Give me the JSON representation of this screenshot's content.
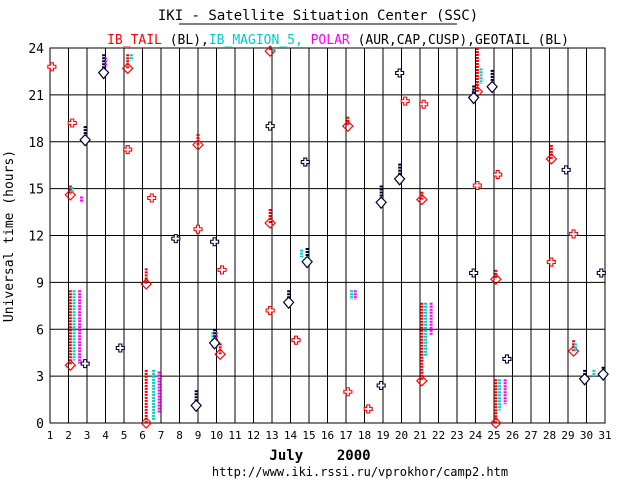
{
  "chart_data": {
    "type": "scatter",
    "title": "IKI - Satellite Situation Center (SSC)",
    "subtitle_parts": [
      {
        "text": "IB_TAIL",
        "color": "#ff0000"
      },
      {
        "text": " (BL),",
        "color": "#000000"
      },
      {
        "text": "IB_MAGION_5,",
        "color": "#00cccc"
      },
      {
        "text": " POLAR",
        "color": "#ff00ff"
      },
      {
        "text": " (AUR,CAP,CUSP),GEOTAIL (BL)",
        "color": "#000000"
      }
    ],
    "ylabel": "Universal time (hours)",
    "xlabel": "July    2000",
    "url": "http://www.iki.rssi.ru/vprokhor/camp2.htm",
    "xlim": [
      1,
      31
    ],
    "ylim": [
      0,
      24
    ],
    "x_ticks": [
      "1",
      "2",
      "3",
      "4",
      "5",
      "6",
      "7",
      "8",
      "9",
      "10",
      "11",
      "12",
      "13",
      "14",
      "15",
      "16",
      "17",
      "18",
      "19",
      "20",
      "21",
      "22",
      "23",
      "24",
      "25",
      "26",
      "27",
      "28",
      "29",
      "30",
      "31"
    ],
    "y_ticks": [
      "0",
      "3",
      "6",
      "9",
      "12",
      "15",
      "18",
      "21",
      "24"
    ],
    "grid": true,
    "colors": {
      "ib_tail": "#ff0000",
      "magion": "#00cccc",
      "polar": "#ff00ff",
      "geotail": "#000033"
    },
    "series": [
      {
        "name": "IB_TAIL",
        "color": "#ff0000",
        "entries": [
          {
            "x": 1.1,
            "y": 22.8
          },
          {
            "x": 2.2,
            "y": 19.2
          },
          {
            "x": 5.2,
            "y": 17.5
          },
          {
            "x": 6.5,
            "y": 14.4
          },
          {
            "x": 9.0,
            "y": 12.4
          },
          {
            "x": 10.3,
            "y": 9.8
          },
          {
            "x": 12.9,
            "y": 7.2
          },
          {
            "x": 14.3,
            "y": 5.3
          },
          {
            "x": 17.1,
            "y": 2.0
          },
          {
            "x": 18.2,
            "y": 0.9
          },
          {
            "x": 20.2,
            "y": 20.6
          },
          {
            "x": 21.2,
            "y": 20.4
          },
          {
            "x": 24.1,
            "y": 15.2
          },
          {
            "x": 25.2,
            "y": 15.9
          },
          {
            "x": 28.1,
            "y": 10.3
          },
          {
            "x": 29.3,
            "y": 12.1
          }
        ],
        "intervals": [
          {
            "x": 2.1,
            "y_start": 3.7,
            "y_end": 8.5
          },
          {
            "x": 2.1,
            "y_start": 14.6,
            "y_end": 15.2
          },
          {
            "x": 5.2,
            "y_start": 22.7,
            "y_end": 23.6
          },
          {
            "x": 6.2,
            "y_start": 0.0,
            "y_end": 3.4
          },
          {
            "x": 6.2,
            "y_start": 8.9,
            "y_end": 9.9
          },
          {
            "x": 9.0,
            "y_start": 17.8,
            "y_end": 18.5
          },
          {
            "x": 10.2,
            "y_start": 4.4,
            "y_end": 5.1
          },
          {
            "x": 12.9,
            "y_start": 12.8,
            "y_end": 13.7
          },
          {
            "x": 12.9,
            "y_start": 23.8,
            "y_end": 24.0
          },
          {
            "x": 17.1,
            "y_start": 19.0,
            "y_end": 19.6
          },
          {
            "x": 21.1,
            "y_start": 2.7,
            "y_end": 7.7
          },
          {
            "x": 21.1,
            "y_start": 14.3,
            "y_end": 14.8
          },
          {
            "x": 24.1,
            "y_start": 21.2,
            "y_end": 24.0
          },
          {
            "x": 25.1,
            "y_start": 0.0,
            "y_end": 2.8
          },
          {
            "x": 25.1,
            "y_start": 9.2,
            "y_end": 9.8
          },
          {
            "x": 28.1,
            "y_start": 16.9,
            "y_end": 17.8
          },
          {
            "x": 29.3,
            "y_start": 4.6,
            "y_end": 5.3
          }
        ]
      },
      {
        "name": "IB_MAGION_5",
        "color": "#00cccc",
        "intervals": [
          {
            "x": 2.3,
            "y_start": 4.0,
            "y_end": 8.5
          },
          {
            "x": 2.2,
            "y_start": 14.7,
            "y_end": 15.1
          },
          {
            "x": 5.4,
            "y_start": 23.2,
            "y_end": 23.6
          },
          {
            "x": 6.6,
            "y_start": 0.2,
            "y_end": 3.4
          },
          {
            "x": 9.8,
            "y_start": 4.8,
            "y_end": 5.8
          },
          {
            "x": 13.1,
            "y_start": 23.7,
            "y_end": 24.0
          },
          {
            "x": 14.6,
            "y_start": 10.6,
            "y_end": 11.1
          },
          {
            "x": 17.3,
            "y_start": 7.9,
            "y_end": 8.5
          },
          {
            "x": 21.3,
            "y_start": 4.3,
            "y_end": 7.7
          },
          {
            "x": 24.3,
            "y_start": 21.7,
            "y_end": 22.7
          },
          {
            "x": 25.3,
            "y_start": 0.8,
            "y_end": 2.8
          },
          {
            "x": 29.4,
            "y_start": 4.6,
            "y_end": 5.1
          },
          {
            "x": 30.4,
            "y_start": 3.0,
            "y_end": 3.4
          }
        ]
      },
      {
        "name": "POLAR",
        "color": "#ff00ff",
        "intervals": [
          {
            "x": 2.6,
            "y_start": 3.8,
            "y_end": 8.5
          },
          {
            "x": 2.7,
            "y_start": 14.1,
            "y_end": 14.5
          },
          {
            "x": 4.0,
            "y_start": 22.8,
            "y_end": 23.4
          },
          {
            "x": 6.9,
            "y_start": 0.6,
            "y_end": 3.3
          },
          {
            "x": 10.0,
            "y_start": 4.8,
            "y_end": 5.8
          },
          {
            "x": 17.5,
            "y_start": 7.9,
            "y_end": 8.5
          },
          {
            "x": 21.6,
            "y_start": 5.6,
            "y_end": 7.7
          },
          {
            "x": 25.6,
            "y_start": 1.2,
            "y_end": 2.8
          }
        ]
      },
      {
        "name": "GEOTAIL",
        "color": "#000033",
        "entries": [
          {
            "x": 2.9,
            "y": 3.8
          },
          {
            "x": 4.8,
            "y": 4.8
          },
          {
            "x": 7.8,
            "y": 11.8
          },
          {
            "x": 9.9,
            "y": 11.6
          },
          {
            "x": 12.9,
            "y": 19.0
          },
          {
            "x": 14.8,
            "y": 16.7
          },
          {
            "x": 18.9,
            "y": 2.4
          },
          {
            "x": 19.9,
            "y": 22.4
          },
          {
            "x": 23.9,
            "y": 9.6
          },
          {
            "x": 25.7,
            "y": 4.1
          },
          {
            "x": 28.9,
            "y": 16.2
          },
          {
            "x": 30.8,
            "y": 9.6
          }
        ],
        "intervals": [
          {
            "x": 2.9,
            "y_start": 18.0,
            "y_end": 19.0
          },
          {
            "x": 3.9,
            "y_start": 22.3,
            "y_end": 23.6
          },
          {
            "x": 8.9,
            "y_start": 1.0,
            "y_end": 2.1
          },
          {
            "x": 9.9,
            "y_start": 5.0,
            "y_end": 6.0
          },
          {
            "x": 13.9,
            "y_start": 7.6,
            "y_end": 8.5
          },
          {
            "x": 14.9,
            "y_start": 10.2,
            "y_end": 11.2
          },
          {
            "x": 18.9,
            "y_start": 14.0,
            "y_end": 15.2
          },
          {
            "x": 19.9,
            "y_start": 15.5,
            "y_end": 16.6
          },
          {
            "x": 23.9,
            "y_start": 20.7,
            "y_end": 21.6
          },
          {
            "x": 24.9,
            "y_start": 21.4,
            "y_end": 22.6
          },
          {
            "x": 29.9,
            "y_start": 2.7,
            "y_end": 3.4
          },
          {
            "x": 30.9,
            "y_start": 3.0,
            "y_end": 3.6
          }
        ]
      }
    ]
  }
}
